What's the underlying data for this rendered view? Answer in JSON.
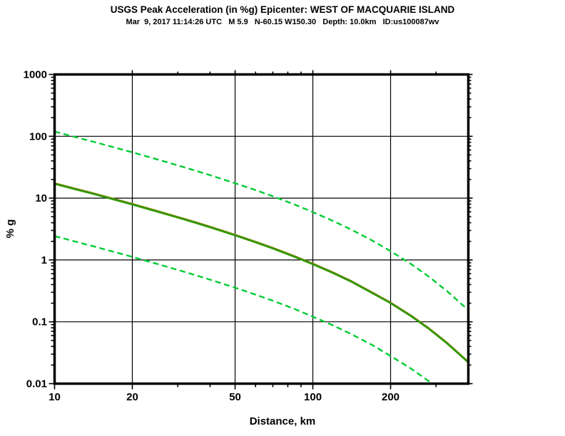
{
  "header": {
    "title": "USGS Peak Acceleration (in %g) Epicenter: WEST OF MACQUARIE ISLAND",
    "subtitle": "Mar  9, 2017 11:14:26 UTC   M 5.9   N-60.15 W150.30   Depth: 10.0km   ID:us100087wv"
  },
  "colors": {
    "background": "#ffffff",
    "frame": "#000000",
    "grid": "#000000",
    "median_green": "#2f9900",
    "median_olive": "#7d8000",
    "sigma_green": "#00cc33"
  },
  "chart_data": {
    "type": "line",
    "title": "USGS Peak Acceleration (in %g) Epicenter: WEST OF MACQUARIE ISLAND",
    "subtitle": "Mar  9, 2017 11:14:26 UTC   M 5.9   N-60.15 W150.30   Depth: 10.0km   ID:us100087wv",
    "xlabel": "Distance, km",
    "ylabel": "% g",
    "x_scale": "log",
    "y_scale": "log",
    "xlim": [
      10,
      400
    ],
    "ylim": [
      0.01,
      1000
    ],
    "grid": {
      "x": [
        20,
        50,
        100,
        200
      ],
      "y": [
        100,
        10,
        1,
        0.1
      ]
    },
    "x_ticks": {
      "major": [
        10,
        20,
        50,
        100,
        200
      ],
      "labels": [
        "10",
        "20",
        "50",
        "100",
        "200"
      ],
      "minor": [
        30,
        40,
        60,
        70,
        80,
        90,
        300
      ]
    },
    "y_ticks": {
      "major": [
        1000,
        100,
        10,
        1,
        0.1,
        0.01
      ],
      "labels": [
        "1000",
        "100",
        "10",
        "1",
        "0.1",
        "0.01"
      ]
    },
    "x": [
      10,
      12,
      14,
      17,
      20,
      25,
      30,
      35,
      40,
      50,
      60,
      70,
      85,
      100,
      120,
      140,
      170,
      200,
      240,
      280,
      330,
      400
    ],
    "series": [
      {
        "name": "median",
        "line_style": "solid",
        "color": "#2f9900",
        "underlay_color": "#7d8000",
        "values": [
          17.0,
          13.9,
          11.8,
          9.45,
          7.85,
          6.03,
          4.84,
          3.99,
          3.36,
          2.49,
          1.92,
          1.53,
          1.12,
          0.85,
          0.61,
          0.45,
          0.29,
          0.2,
          0.123,
          0.078,
          0.045,
          0.022
        ]
      },
      {
        "name": "median-plus-sigma",
        "line_style": "dashed",
        "color": "#00cc33",
        "values": [
          119,
          97.4,
          82.4,
          66.2,
          55.0,
          42.2,
          33.9,
          27.9,
          23.5,
          17.4,
          13.5,
          10.7,
          7.87,
          5.95,
          4.26,
          3.14,
          2.06,
          1.39,
          0.86,
          0.545,
          0.316,
          0.154
        ]
      },
      {
        "name": "median-minus-sigma",
        "line_style": "dashed",
        "color": "#00cc33",
        "values": [
          2.43,
          1.99,
          1.68,
          1.35,
          1.12,
          0.861,
          0.691,
          0.57,
          0.48,
          0.356,
          0.275,
          0.219,
          0.161,
          0.121,
          0.087,
          0.064,
          0.042,
          0.028,
          0.0175,
          0.0111,
          0.0065,
          0.0031
        ]
      }
    ]
  }
}
